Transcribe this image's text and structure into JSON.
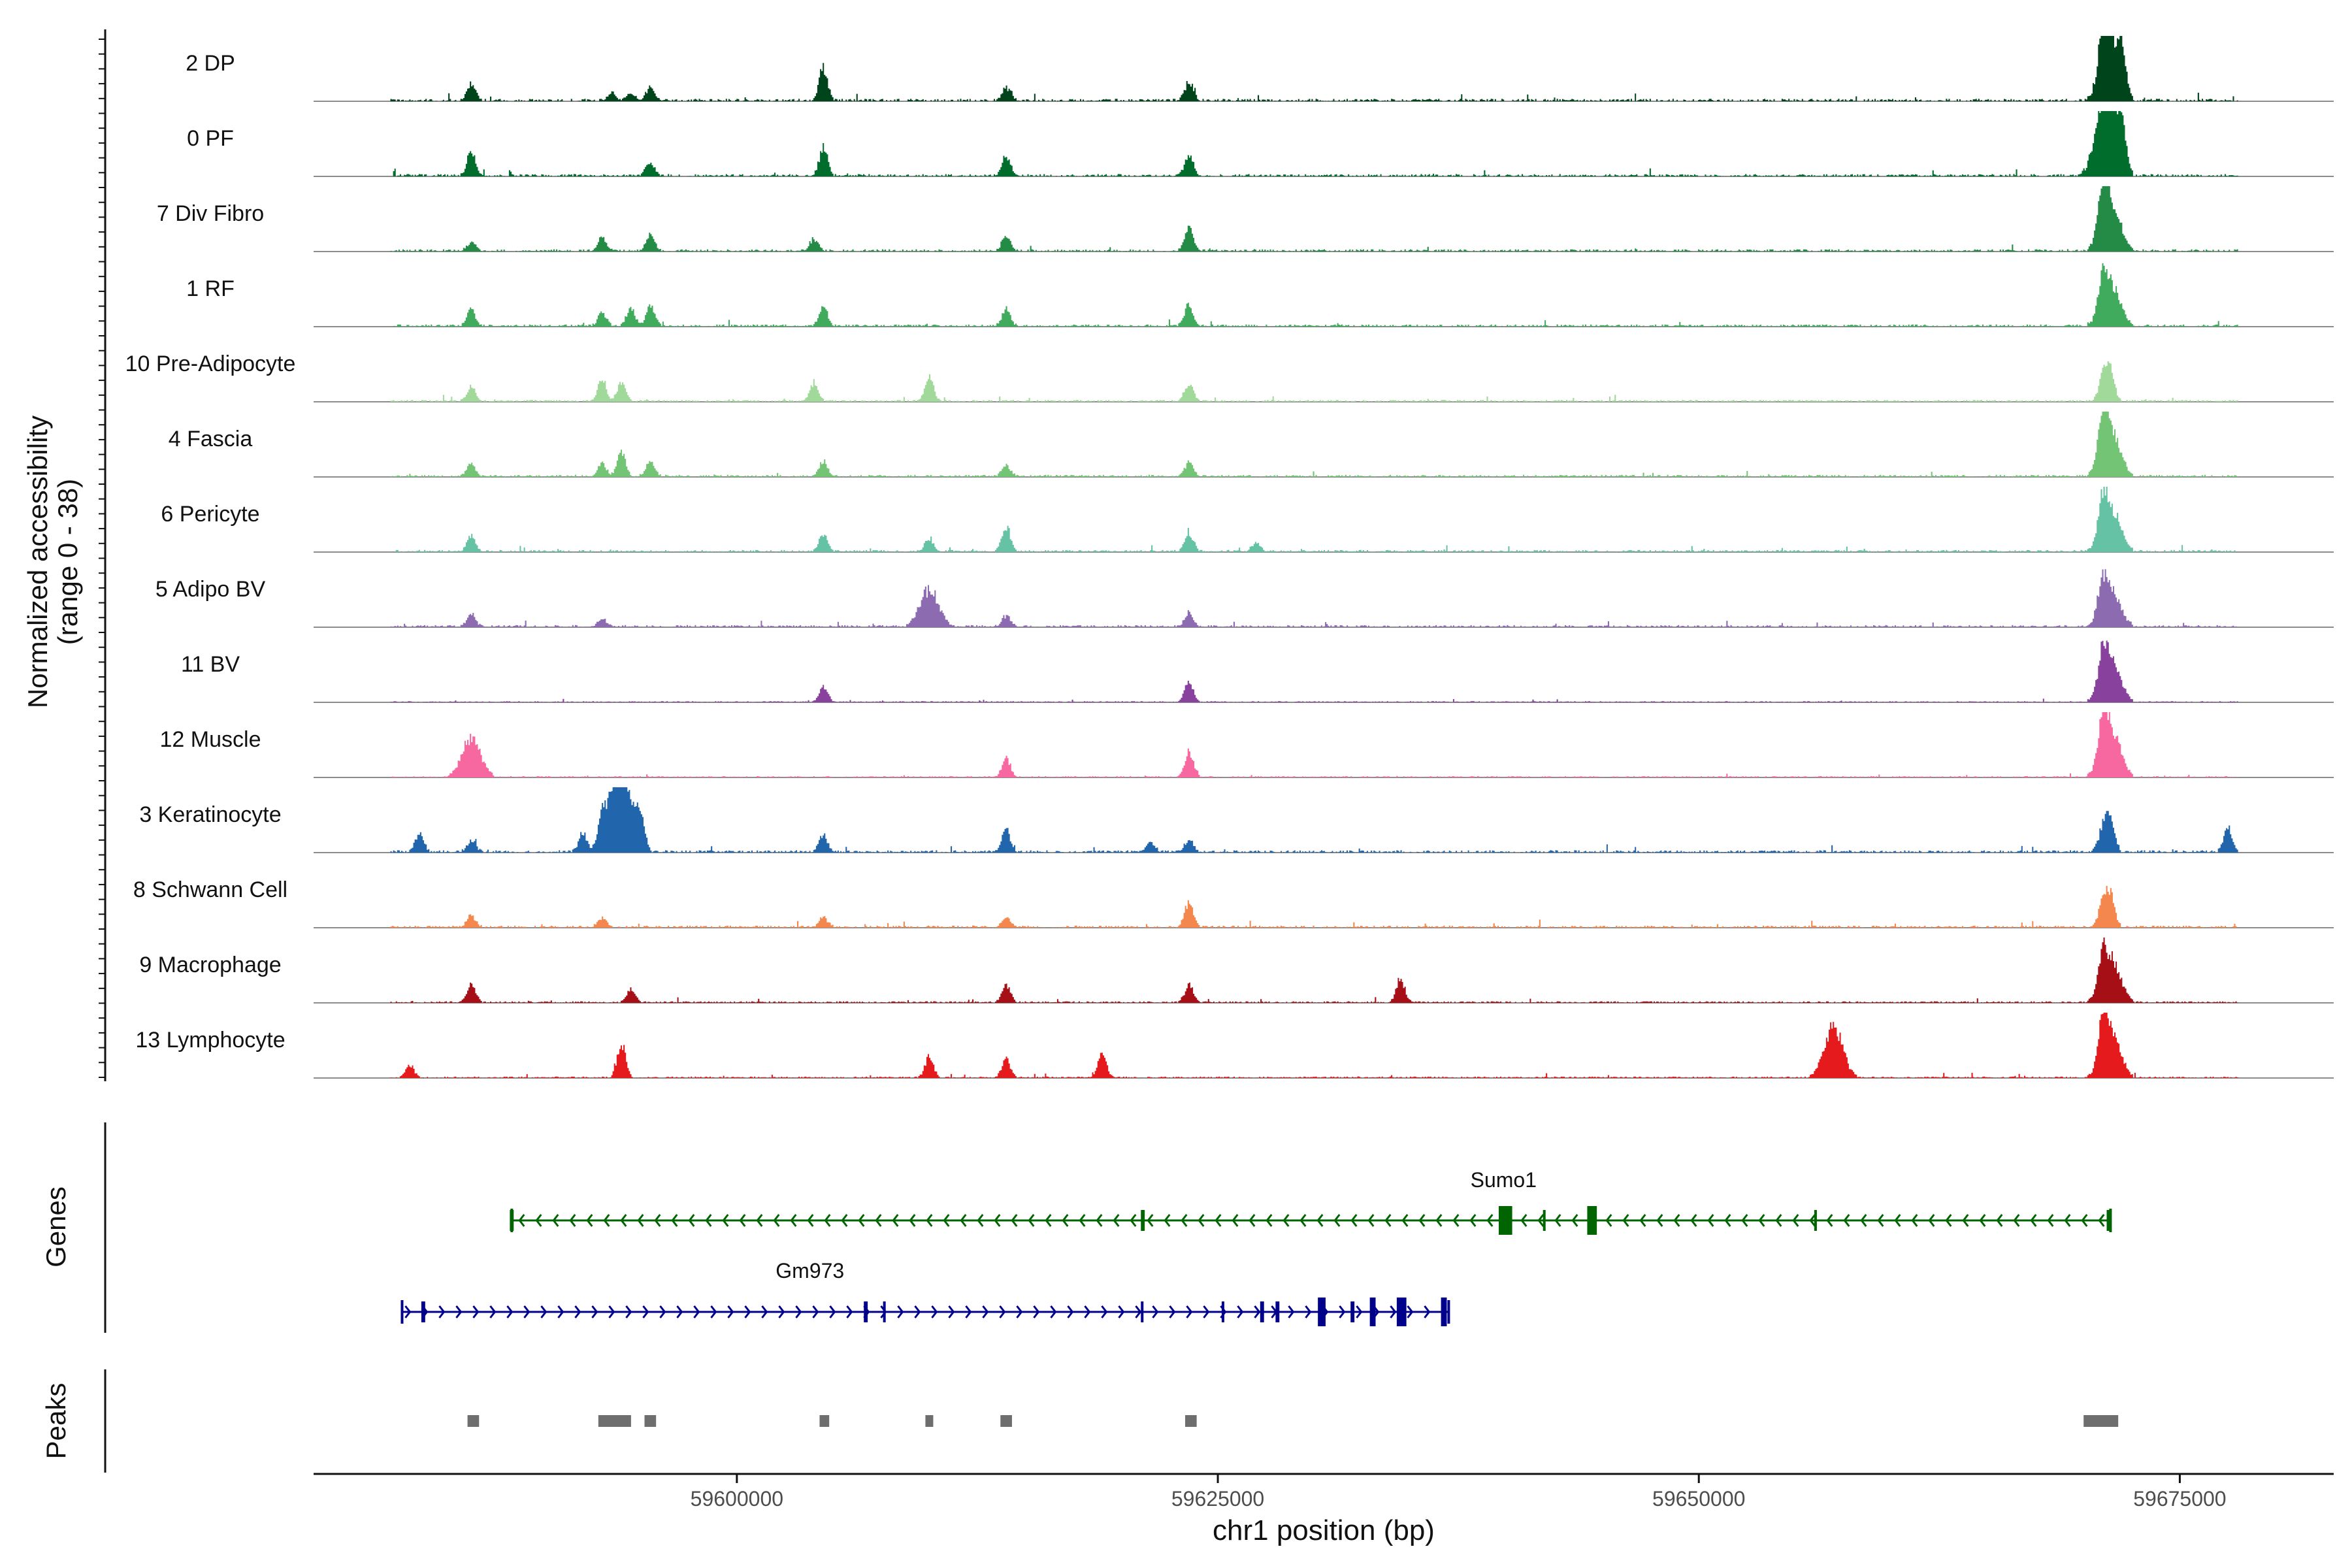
{
  "chart_data": {
    "type": "area",
    "ylabel": "Normalized accessibility",
    "ylabel_range": "(range 0 - 38)",
    "ylim": [
      0,
      38
    ],
    "xlabel": "chr1 position (bp)",
    "xlim": [
      59578000,
      59683000
    ],
    "xticks": [
      59600000,
      59625000,
      59650000,
      59675000
    ],
    "xtick_labels": [
      "59600000",
      "59625000",
      "59650000",
      "59675000"
    ],
    "genes_label": "Genes",
    "peaks_label": "Peaks",
    "tracks": [
      {
        "name": "2 DP",
        "color": "#00441b",
        "level": 0.95,
        "density": 0.7,
        "peaks": [
          [
            59586200,
            0.28
          ],
          [
            59593500,
            0.12
          ],
          [
            59594500,
            0.12
          ],
          [
            59595500,
            0.22
          ],
          [
            59604500,
            0.55
          ],
          [
            59614000,
            0.22
          ],
          [
            59623500,
            0.3
          ],
          [
            59671000,
            0.6
          ],
          [
            59671400,
            1.0
          ],
          [
            59672000,
            0.5
          ]
        ]
      },
      {
        "name": "0 PF",
        "color": "#006d2c",
        "level": 0.9,
        "density": 0.65,
        "peaks": [
          [
            59586200,
            0.4
          ],
          [
            59595500,
            0.2
          ],
          [
            59604500,
            0.45
          ],
          [
            59614000,
            0.32
          ],
          [
            59623500,
            0.36
          ],
          [
            59671000,
            0.7
          ],
          [
            59671400,
            0.9
          ],
          [
            59672000,
            0.5
          ]
        ]
      },
      {
        "name": "7 Div Fibro",
        "color": "#238b45",
        "level": 0.85,
        "density": 0.7,
        "peaks": [
          [
            59586200,
            0.15
          ],
          [
            59593000,
            0.25
          ],
          [
            59595500,
            0.28
          ],
          [
            59604000,
            0.2
          ],
          [
            59614000,
            0.25
          ],
          [
            59623500,
            0.38
          ],
          [
            59671000,
            0.6
          ],
          [
            59671400,
            0.85
          ]
        ]
      },
      {
        "name": "1 RF",
        "color": "#41ab5d",
        "level": 0.85,
        "density": 0.7,
        "peaks": [
          [
            59586200,
            0.28
          ],
          [
            59593000,
            0.22
          ],
          [
            59594500,
            0.3
          ],
          [
            59595500,
            0.35
          ],
          [
            59604500,
            0.3
          ],
          [
            59614000,
            0.28
          ],
          [
            59623500,
            0.35
          ],
          [
            59671000,
            0.45
          ],
          [
            59671400,
            0.7
          ]
        ]
      },
      {
        "name": "10 Pre-Adipocyte",
        "color": "#a1d99b",
        "level": 0.7,
        "density": 0.9,
        "peaks": [
          [
            59586200,
            0.25
          ],
          [
            59593000,
            0.35
          ],
          [
            59594000,
            0.3
          ],
          [
            59604000,
            0.3
          ],
          [
            59610000,
            0.4
          ],
          [
            59623500,
            0.3
          ],
          [
            59671000,
            0.4
          ],
          [
            59671400,
            0.5
          ]
        ]
      },
      {
        "name": "4 Fascia",
        "color": "#74c476",
        "level": 0.8,
        "density": 0.75,
        "peaks": [
          [
            59586200,
            0.2
          ],
          [
            59593000,
            0.22
          ],
          [
            59594000,
            0.4
          ],
          [
            59595500,
            0.25
          ],
          [
            59604500,
            0.25
          ],
          [
            59614000,
            0.18
          ],
          [
            59623500,
            0.22
          ],
          [
            59671000,
            0.6
          ],
          [
            59671400,
            0.75
          ]
        ]
      },
      {
        "name": "6 Pericyte",
        "color": "#66c2a4",
        "level": 0.8,
        "density": 0.7,
        "peaks": [
          [
            59586200,
            0.25
          ],
          [
            59604500,
            0.28
          ],
          [
            59610000,
            0.22
          ],
          [
            59614000,
            0.42
          ],
          [
            59623500,
            0.32
          ],
          [
            59627000,
            0.15
          ],
          [
            59671000,
            0.5
          ],
          [
            59671400,
            0.72
          ]
        ]
      },
      {
        "name": "5 Adipo BV",
        "color": "#8c6bb1",
        "level": 0.8,
        "density": 0.7,
        "peaks": [
          [
            59586200,
            0.2
          ],
          [
            59593000,
            0.12
          ],
          [
            59610000,
            0.62
          ],
          [
            59614000,
            0.18
          ],
          [
            59623500,
            0.22
          ],
          [
            59671000,
            0.45
          ],
          [
            59671400,
            0.62
          ]
        ]
      },
      {
        "name": "11 BV",
        "color": "#88419d",
        "level": 0.45,
        "density": 0.9,
        "peaks": [
          [
            59604500,
            0.25
          ],
          [
            59623500,
            0.32
          ],
          [
            59671000,
            0.45
          ],
          [
            59671400,
            0.7
          ]
        ]
      },
      {
        "name": "12 Muscle",
        "color": "#f768a1",
        "level": 0.5,
        "density": 0.85,
        "peaks": [
          [
            59586200,
            0.65
          ],
          [
            59614000,
            0.3
          ],
          [
            59623500,
            0.42
          ],
          [
            59671000,
            0.55
          ],
          [
            59671400,
            0.85
          ]
        ]
      },
      {
        "name": "3 Keratinocyte",
        "color": "#2166ac",
        "level": 0.9,
        "density": 0.7,
        "peaks": [
          [
            59583500,
            0.3
          ],
          [
            59586200,
            0.2
          ],
          [
            59592000,
            0.3
          ],
          [
            59593000,
            0.45
          ],
          [
            59593700,
            0.75
          ],
          [
            59594200,
            0.85
          ],
          [
            59595000,
            0.45
          ],
          [
            59604500,
            0.28
          ],
          [
            59614000,
            0.36
          ],
          [
            59621500,
            0.16
          ],
          [
            59623500,
            0.2
          ],
          [
            59671000,
            0.4
          ],
          [
            59671400,
            0.55
          ],
          [
            59677500,
            0.4
          ]
        ]
      },
      {
        "name": "8 Schwann Cell",
        "color": "#f4874e",
        "level": 0.8,
        "density": 0.75,
        "peaks": [
          [
            59586200,
            0.2
          ],
          [
            59593000,
            0.15
          ],
          [
            59604500,
            0.16
          ],
          [
            59614000,
            0.15
          ],
          [
            59623500,
            0.4
          ],
          [
            59671000,
            0.45
          ],
          [
            59671400,
            0.5
          ]
        ]
      },
      {
        "name": "9 Macrophage",
        "color": "#a50f15",
        "level": 0.6,
        "density": 0.85,
        "peaks": [
          [
            59586200,
            0.3
          ],
          [
            59594500,
            0.22
          ],
          [
            59614000,
            0.3
          ],
          [
            59623500,
            0.28
          ],
          [
            59634500,
            0.38
          ],
          [
            59671000,
            0.4
          ],
          [
            59671400,
            0.72
          ]
        ]
      },
      {
        "name": "13 Lymphocyte",
        "color": "#e41a1c",
        "level": 0.55,
        "density": 0.8,
        "peaks": [
          [
            59583000,
            0.2
          ],
          [
            59594000,
            0.55
          ],
          [
            59610000,
            0.35
          ],
          [
            59614000,
            0.3
          ],
          [
            59619000,
            0.4
          ],
          [
            59657000,
            0.82
          ],
          [
            59671000,
            0.55
          ],
          [
            59671400,
            0.78
          ]
        ]
      }
    ],
    "genes": [
      {
        "name": "Sumo1",
        "color": "#006400",
        "strand": "-",
        "start": 59588300,
        "end": 59671400,
        "exons": [
          [
            59588200,
            59588400
          ],
          [
            59621000,
            59621200
          ],
          [
            59639600,
            59640300
          ],
          [
            59641900,
            59642000
          ],
          [
            59644200,
            59644700
          ],
          [
            59656000,
            59656100
          ],
          [
            59671200,
            59671400
          ]
        ]
      },
      {
        "name": "Gm973",
        "color": "#00008b",
        "strand": "+",
        "start": 59582600,
        "end": 59637000,
        "exons": [
          [
            59583600,
            59583800
          ],
          [
            59606600,
            59606800
          ],
          [
            59607600,
            59607700
          ],
          [
            59621000,
            59621100
          ],
          [
            59625200,
            59625300
          ],
          [
            59627200,
            59627400
          ],
          [
            59628000,
            59628200
          ],
          [
            59630200,
            59630600
          ],
          [
            59631900,
            59632100
          ],
          [
            59632900,
            59633200
          ],
          [
            59634300,
            59634800
          ],
          [
            59636600,
            59636900
          ]
        ]
      }
    ],
    "peaks": [
      [
        59586000,
        59586600
      ],
      [
        59592800,
        59594500
      ],
      [
        59595200,
        59595800
      ],
      [
        59604300,
        59604800
      ],
      [
        59609800,
        59610200
      ],
      [
        59613700,
        59614300
      ],
      [
        59623300,
        59623900
      ],
      [
        59670000,
        59671800
      ]
    ]
  }
}
